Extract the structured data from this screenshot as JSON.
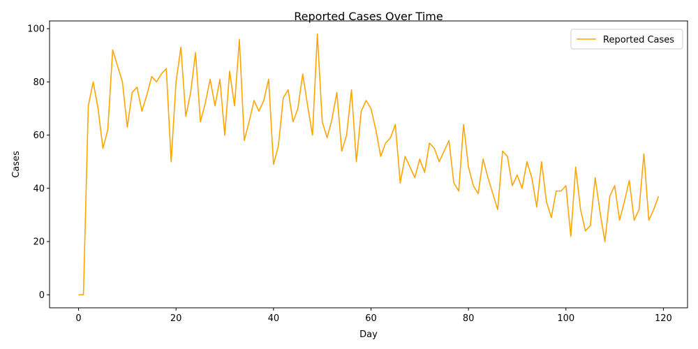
{
  "chart_data": {
    "type": "line",
    "title": "Reported Cases Over Time",
    "xlabel": "Day",
    "ylabel": "Cases",
    "xlim": [
      -5.95,
      124.95
    ],
    "ylim": [
      -4.9,
      102.9
    ],
    "xticks": [
      0,
      20,
      40,
      60,
      80,
      100,
      120
    ],
    "yticks": [
      0,
      20,
      40,
      60,
      80,
      100
    ],
    "grid": false,
    "legend_position": "top-right",
    "series": [
      {
        "name": "Reported Cases",
        "color": "#FFA500",
        "x": [
          0,
          1,
          2,
          3,
          4,
          5,
          6,
          7,
          8,
          9,
          10,
          11,
          12,
          13,
          14,
          15,
          16,
          17,
          18,
          19,
          20,
          21,
          22,
          23,
          24,
          25,
          26,
          27,
          28,
          29,
          30,
          31,
          32,
          33,
          34,
          35,
          36,
          37,
          38,
          39,
          40,
          41,
          42,
          43,
          44,
          45,
          46,
          47,
          48,
          49,
          50,
          51,
          52,
          53,
          54,
          55,
          56,
          57,
          58,
          59,
          60,
          61,
          62,
          63,
          64,
          65,
          66,
          67,
          68,
          69,
          70,
          71,
          72,
          73,
          74,
          75,
          76,
          77,
          78,
          79,
          80,
          81,
          82,
          83,
          84,
          85,
          86,
          87,
          88,
          89,
          90,
          91,
          92,
          93,
          94,
          95,
          96,
          97,
          98,
          99,
          100,
          101,
          102,
          103,
          104,
          105,
          106,
          107,
          108,
          109,
          110,
          111,
          112,
          113,
          114,
          115,
          116,
          117,
          118,
          119
        ],
        "values": [
          0,
          0,
          71,
          80,
          70,
          55,
          62,
          92,
          86,
          80,
          63,
          76,
          78,
          69,
          75,
          82,
          80,
          83,
          85,
          50,
          80,
          93,
          67,
          76,
          91,
          65,
          72,
          81,
          71,
          81,
          60,
          84,
          71,
          96,
          58,
          65,
          73,
          69,
          73,
          81,
          49,
          56,
          74,
          77,
          65,
          70,
          83,
          71,
          60,
          98,
          65,
          59,
          66,
          76,
          54,
          60,
          77,
          50,
          69,
          73,
          70,
          62,
          52,
          57,
          59,
          64,
          42,
          52,
          48,
          44,
          51,
          46,
          57,
          55,
          50,
          54,
          58,
          42,
          39,
          64,
          48,
          41,
          38,
          51,
          44,
          38,
          32,
          54,
          52,
          41,
          45,
          40,
          50,
          44,
          33,
          50,
          35,
          29,
          39,
          39,
          41,
          22,
          48,
          32,
          24,
          26,
          44,
          31,
          20,
          37,
          41,
          28,
          35,
          43,
          28,
          32,
          53,
          28,
          32,
          37
        ]
      }
    ]
  }
}
